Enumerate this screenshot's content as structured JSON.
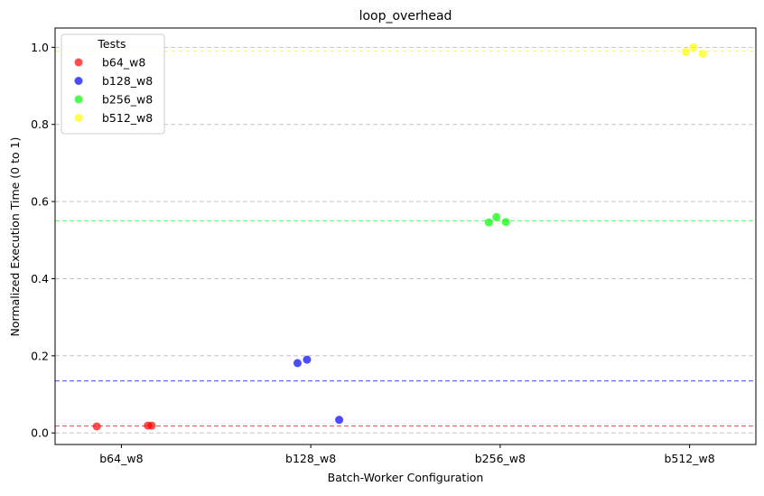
{
  "chart_data": {
    "type": "scatter",
    "title": "loop_overhead",
    "xlabel": "Batch-Worker Configuration",
    "ylabel": "Normalized Execution Time (0 to 1)",
    "categories": [
      "b64_w8",
      "b128_w8",
      "b256_w8",
      "b512_w8"
    ],
    "ylim": [
      -0.03,
      1.05
    ],
    "yticks": [
      "0.0",
      "0.2",
      "0.4",
      "0.6",
      "0.8",
      "1.0"
    ],
    "grid": "horizontal dashed",
    "legend": {
      "title": "Tests",
      "position": "top-left"
    },
    "series": [
      {
        "name": "b64_w8",
        "color": "#ff0000",
        "points": [
          {
            "x": -0.13,
            "y": 0.017
          },
          {
            "x": 0.14,
            "y": 0.019
          },
          {
            "x": 0.16,
            "y": 0.019
          }
        ],
        "mean": 0.018
      },
      {
        "name": "b128_w8",
        "color": "#0000ff",
        "points": [
          {
            "x": 0.93,
            "y": 0.181
          },
          {
            "x": 0.98,
            "y": 0.19
          },
          {
            "x": 1.15,
            "y": 0.034
          }
        ],
        "mean": 0.135
      },
      {
        "name": "b256_w8",
        "color": "#00ff00",
        "points": [
          {
            "x": 1.94,
            "y": 0.546
          },
          {
            "x": 1.98,
            "y": 0.56
          },
          {
            "x": 2.03,
            "y": 0.547
          }
        ],
        "mean": 0.55
      },
      {
        "name": "b512_w8",
        "color": "#ffff00",
        "points": [
          {
            "x": 2.98,
            "y": 0.988
          },
          {
            "x": 3.02,
            "y": 1.0
          },
          {
            "x": 3.07,
            "y": 0.983
          }
        ],
        "mean": 0.99
      }
    ]
  }
}
